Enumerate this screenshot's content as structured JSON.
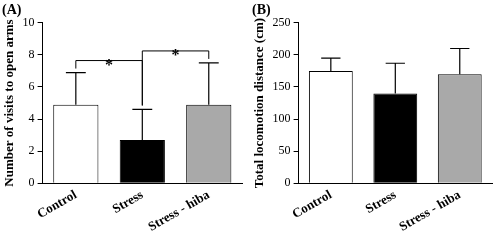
{
  "chart_data": [
    {
      "type": "bar",
      "title": "(A)",
      "y_label": "Number of visits to open arms",
      "categories": [
        "Control",
        "Stress",
        "Stress - hiba"
      ],
      "values": [
        4.9,
        2.7,
        4.9
      ],
      "errors": [
        2.0,
        1.9,
        2.6
      ],
      "colors": [
        "#ffffff",
        "#000000",
        "#a9a9a9"
      ],
      "ylim": [
        0,
        10
      ],
      "yticks": [
        0,
        2,
        4,
        6,
        8,
        10
      ],
      "grid": false,
      "annotations": [
        {
          "text": "*",
          "between": [
            "Control",
            "Stress"
          ]
        },
        {
          "text": "*",
          "between": [
            "Stress",
            "Stress - hiba"
          ]
        }
      ]
    },
    {
      "type": "bar",
      "title": "(B)",
      "y_label": "Total locomotion distance (cm)",
      "categories": [
        "Control",
        "Stress",
        "Stress - hiba"
      ],
      "values": [
        175,
        140,
        170
      ],
      "errors": [
        20,
        47,
        40
      ],
      "colors": [
        "#ffffff",
        "#000000",
        "#a9a9a9"
      ],
      "ylim": [
        0,
        250
      ],
      "yticks": [
        0,
        50,
        100,
        150,
        200,
        250
      ],
      "grid": false
    }
  ]
}
